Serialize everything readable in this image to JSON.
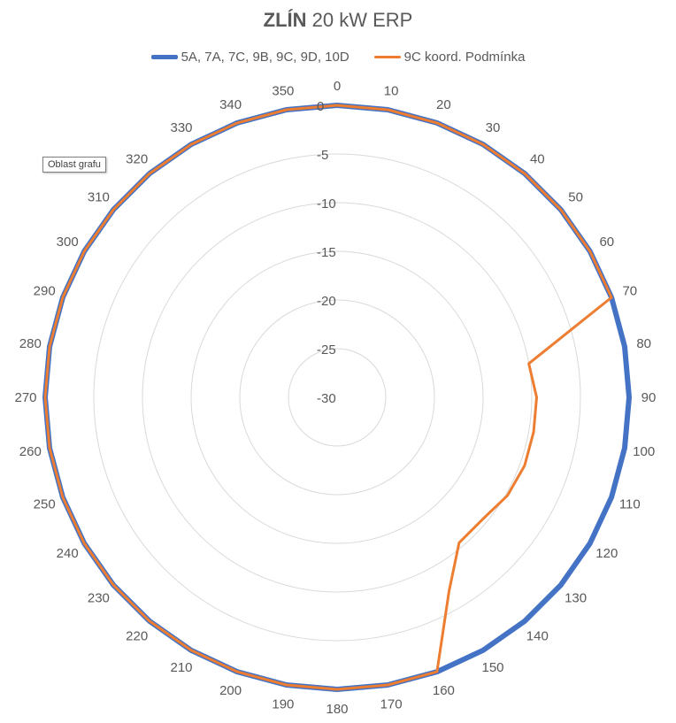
{
  "chart_data": {
    "type": "radar",
    "title_bold": "ZLÍN",
    "title_rest": "20 kW ERP",
    "categories": [
      "0",
      "10",
      "20",
      "30",
      "40",
      "50",
      "60",
      "70",
      "80",
      "90",
      "100",
      "110",
      "120",
      "130",
      "140",
      "150",
      "160",
      "170",
      "180",
      "190",
      "200",
      "210",
      "220",
      "230",
      "240",
      "250",
      "260",
      "270",
      "280",
      "290",
      "300",
      "310",
      "320",
      "330",
      "340",
      "350"
    ],
    "radial_ticks": [
      "0",
      "-5",
      "-10",
      "-15",
      "-20",
      "-25",
      "-30"
    ],
    "rlim": [
      -30,
      0
    ],
    "series": [
      {
        "name": "5A, 7A, 7C, 9B, 9C, 9D, 10D",
        "color": "#4472C4",
        "values": [
          0,
          0,
          0,
          0,
          0,
          0,
          0,
          0,
          0,
          0,
          0,
          0,
          0,
          0,
          0,
          0,
          0,
          0,
          0,
          0,
          0,
          0,
          0,
          0,
          0,
          0,
          0,
          0,
          0,
          0,
          0,
          0,
          0,
          0,
          0,
          0
        ]
      },
      {
        "name": "9C koord. Podmínka",
        "color": "#ED7D31",
        "values": [
          0,
          0,
          0,
          0,
          0,
          0,
          0,
          0,
          -10,
          -9.5,
          -9.5,
          -9.5,
          -9.8,
          -10.5,
          -10.5,
          -7,
          0,
          0,
          0,
          0,
          0,
          0,
          0,
          0,
          0,
          0,
          0,
          0,
          0,
          0,
          0,
          0,
          0,
          0,
          0,
          0
        ]
      }
    ],
    "grid": true,
    "legend_position": "top"
  },
  "tooltip": "Oblast grafu"
}
